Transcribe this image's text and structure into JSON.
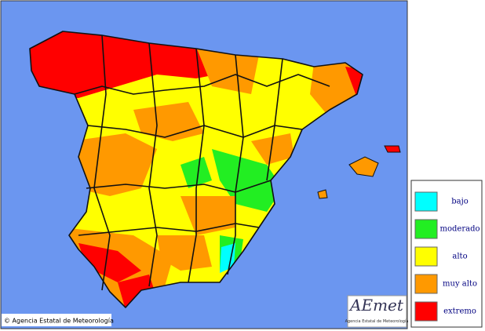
{
  "legend": {
    "items": [
      {
        "label": "bajo",
        "color": "#00ffff"
      },
      {
        "label": "moderado",
        "color": "#22ee22"
      },
      {
        "label": "alto",
        "color": "#ffff00"
      },
      {
        "label": "muy alto",
        "color": "#ff9900"
      },
      {
        "label": "extremo",
        "color": "#ff0000"
      }
    ]
  },
  "copyright": "© Agencia Estatal de Meteorología",
  "logo": {
    "title": "AEmet",
    "subtitle": "Agencia Estatal de Meteorología"
  }
}
